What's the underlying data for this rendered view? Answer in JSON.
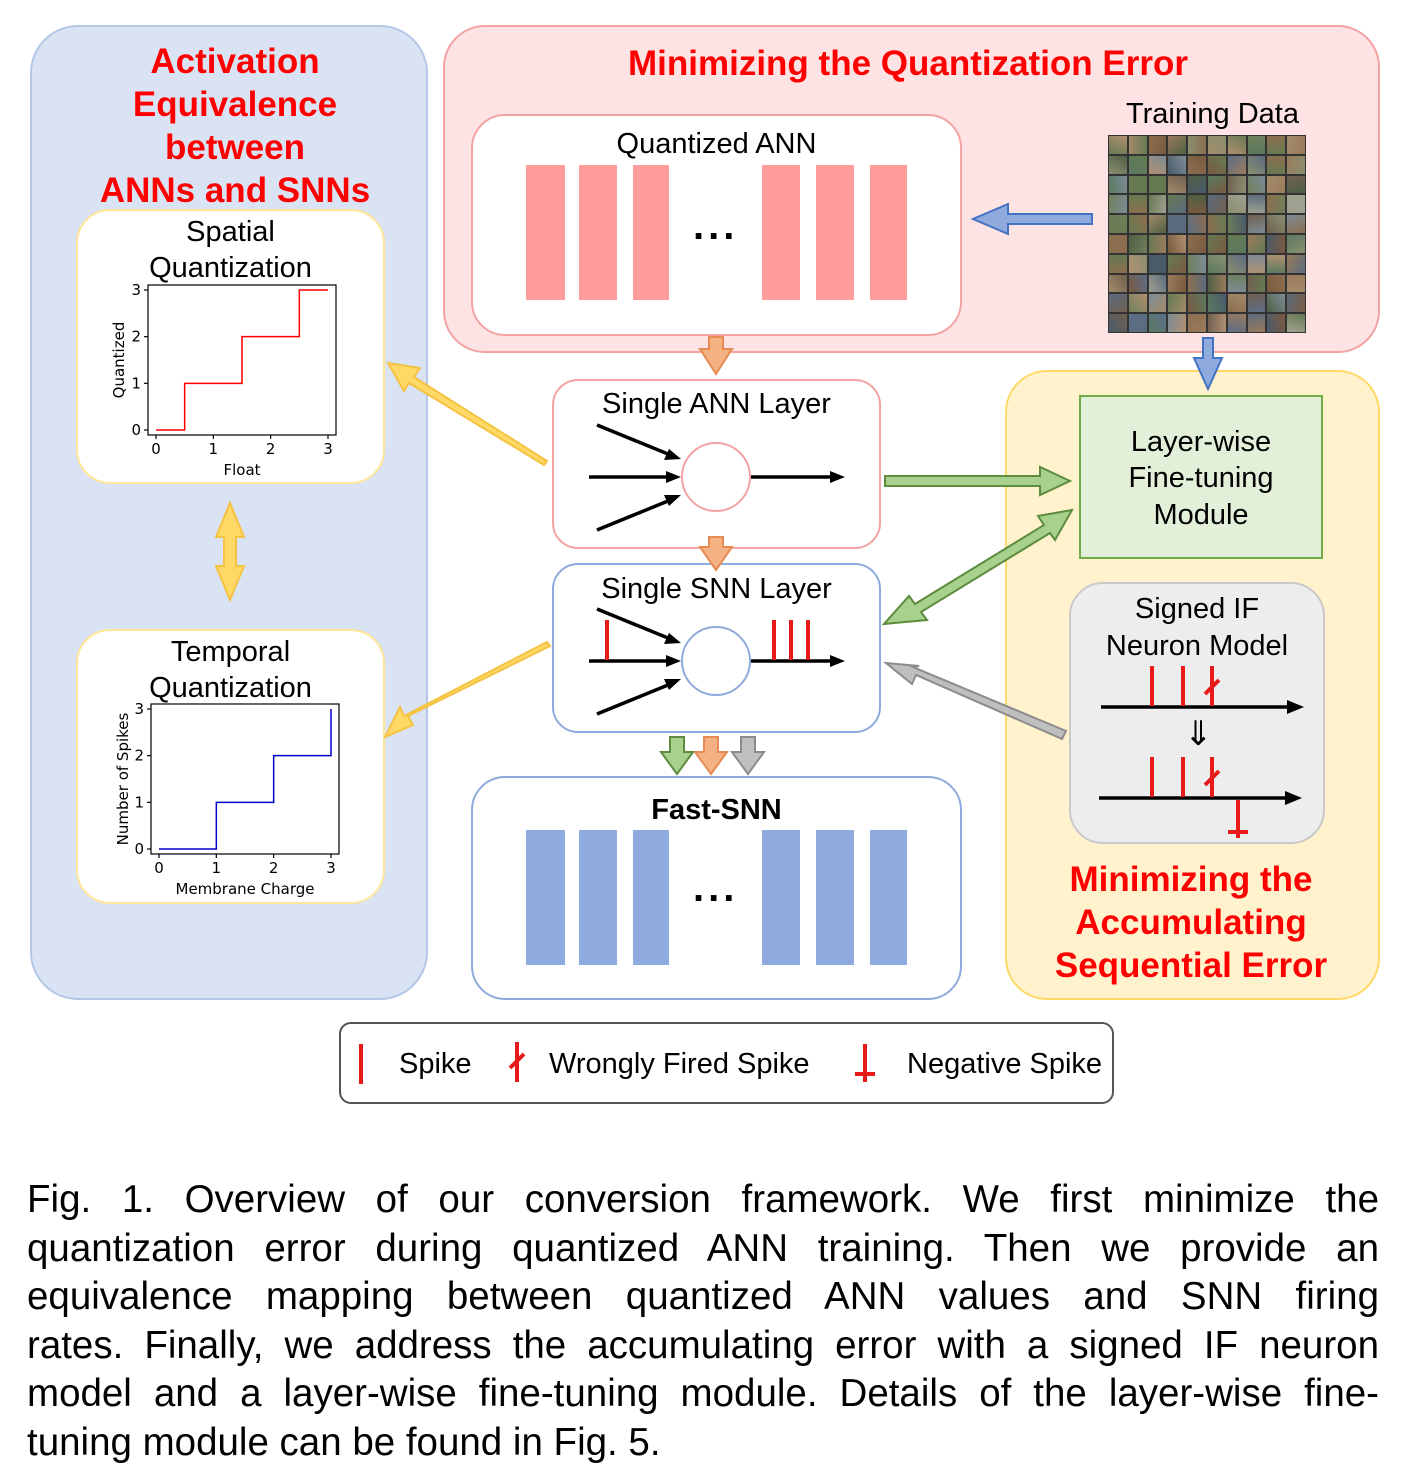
{
  "panels": {
    "activation": {
      "title_lines": [
        "Activation",
        "Equivalence",
        "between",
        "ANNs and SNNs"
      ]
    },
    "quantization": {
      "title": "Minimizing the Quantization Error"
    },
    "sequential": {
      "title_lines": [
        "Minimizing the",
        "Accumulating",
        "Sequential Error"
      ]
    }
  },
  "boxes": {
    "spatial": {
      "title_lines": [
        "Spatial",
        "Quantization"
      ]
    },
    "temporal": {
      "title_lines": [
        "Temporal",
        "Quantization"
      ]
    },
    "quantized_ann": {
      "title": "Quantized ANN",
      "ellipsis": "..."
    },
    "training_data": {
      "title": "Training  Data"
    },
    "single_ann": {
      "title": "Single ANN Layer"
    },
    "single_snn": {
      "title": "Single SNN Layer"
    },
    "fast_snn": {
      "title": "Fast-SNN",
      "ellipsis": "..."
    },
    "finetune": {
      "title_lines": [
        "Layer-wise",
        "Fine-tuning",
        "Module"
      ]
    },
    "signed_if": {
      "title_lines": [
        "Signed IF",
        "Neuron  Model"
      ],
      "arrow_glyph": "⇓"
    }
  },
  "legend": {
    "spike": "Spike",
    "wrong": "Wrongly Fired Spike",
    "negative": "Negative  Spike"
  },
  "colors": {
    "title_red": "#ff0000",
    "ann_layer": "#ff9d9d",
    "snn_layer": "#8faadc",
    "spike": "#e81a1a",
    "arrow_yellow": "#ffd966",
    "arrow_orange": "#f4b183",
    "arrow_green": "#a9d18e",
    "arrow_blue": "#8faadc",
    "arrow_gray": "#bfbfbf"
  },
  "chart_data": [
    {
      "type": "line",
      "title": "",
      "xlabel": "Float",
      "ylabel": "Quantized",
      "xlim": [
        0,
        3
      ],
      "ylim": [
        0,
        3
      ],
      "x_ticks": [
        "0",
        "1",
        "2",
        "3"
      ],
      "y_ticks": [
        "0",
        "1",
        "2",
        "3"
      ],
      "color": "#ff0000",
      "series": [
        {
          "x": [
            0,
            0.5,
            0.5,
            1.5,
            1.5,
            2.5,
            2.5,
            3
          ],
          "y": [
            0,
            0,
            1,
            1,
            2,
            2,
            3,
            3
          ]
        }
      ]
    },
    {
      "type": "line",
      "title": "",
      "xlabel": "Membrane Charge",
      "ylabel": "Number of Spikes",
      "xlim": [
        0,
        3
      ],
      "ylim": [
        0,
        3
      ],
      "x_ticks": [
        "0",
        "1",
        "2",
        "3"
      ],
      "y_ticks": [
        "0",
        "1",
        "2",
        "3"
      ],
      "color": "#0000cc",
      "series": [
        {
          "x": [
            0,
            1,
            1,
            2,
            2,
            3,
            3
          ],
          "y": [
            0,
            0,
            1,
            1,
            2,
            2,
            3
          ]
        }
      ]
    }
  ],
  "caption_lines": [
    "Fig. 1. Overview of our conversion framework. We first minimize the",
    "quantization error during quantized ANN training. Then we provide an",
    "equivalence mapping between quantized ANN values and SNN firing",
    "rates. Finally, we address the accumulating error with a signed IF neuron",
    "model and a layer-wise fine-tuning module. Details of the layer-wise fine-",
    "tuning module can be found in Fig. 5."
  ]
}
